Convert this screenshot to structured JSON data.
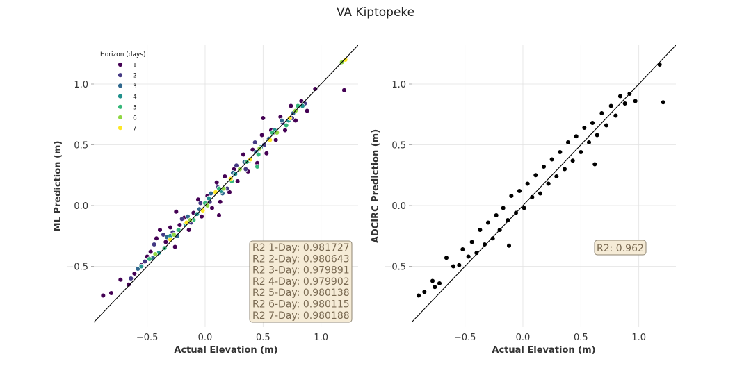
{
  "title": "VA Kiptopeke",
  "chart_data": [
    {
      "type": "scatter",
      "xlabel": "Actual Elevation (m)",
      "ylabel": "ML Prediction (m)",
      "xlim": [
        -0.96,
        1.32
      ],
      "ylim": [
        -1.0,
        1.32
      ],
      "xticks": [
        -0.5,
        0.0,
        0.5,
        1.0
      ],
      "yticks": [
        -0.5,
        0.0,
        0.5,
        1.0
      ],
      "xtick_labels": [
        "−0.5",
        "0.0",
        "0.5",
        "1.0"
      ],
      "ytick_labels": [
        "−0.5",
        "0.0",
        "0.5",
        "1.0"
      ],
      "grid": true,
      "reference_line": "y = x",
      "legend": {
        "title": "Horizon (days)",
        "placement": "top-left",
        "entries": [
          {
            "label": "1",
            "color": "#440154"
          },
          {
            "label": "2",
            "color": "#443983"
          },
          {
            "label": "3",
            "color": "#31688e"
          },
          {
            "label": "4",
            "color": "#21918c"
          },
          {
            "label": "5",
            "color": "#35b779"
          },
          {
            "label": "6",
            "color": "#90d743"
          },
          {
            "label": "7",
            "color": "#fde725"
          }
        ]
      },
      "series": [
        {
          "name": "1",
          "color": "#440154",
          "points": [
            [
              -0.88,
              -0.74
            ],
            [
              -0.81,
              -0.72
            ],
            [
              -0.73,
              -0.61
            ],
            [
              -0.66,
              -0.65
            ],
            [
              -0.61,
              -0.56
            ],
            [
              -0.55,
              -0.49
            ],
            [
              -0.5,
              -0.42
            ],
            [
              -0.47,
              -0.38
            ],
            [
              -0.42,
              -0.27
            ],
            [
              -0.39,
              -0.2
            ],
            [
              -0.34,
              -0.3
            ],
            [
              -0.3,
              -0.18
            ],
            [
              -0.26,
              -0.34
            ],
            [
              -0.22,
              -0.16
            ],
            [
              -0.18,
              -0.1
            ],
            [
              -0.14,
              -0.2
            ],
            [
              -0.1,
              -0.06
            ],
            [
              -0.06,
              0.05
            ],
            [
              -0.03,
              -0.09
            ],
            [
              0.02,
              0.08
            ],
            [
              0.06,
              -0.02
            ],
            [
              0.1,
              0.19
            ],
            [
              0.13,
              0.03
            ],
            [
              0.17,
              0.24
            ],
            [
              0.21,
              0.11
            ],
            [
              0.25,
              0.3
            ],
            [
              0.28,
              0.2
            ],
            [
              0.33,
              0.42
            ],
            [
              0.37,
              0.28
            ],
            [
              0.41,
              0.46
            ],
            [
              0.45,
              0.35
            ],
            [
              0.49,
              0.58
            ],
            [
              0.53,
              0.43
            ],
            [
              0.57,
              0.62
            ],
            [
              0.61,
              0.54
            ],
            [
              0.65,
              0.73
            ],
            [
              0.69,
              0.62
            ],
            [
              0.74,
              0.82
            ],
            [
              0.78,
              0.7
            ],
            [
              0.83,
              0.86
            ],
            [
              0.88,
              0.78
            ],
            [
              0.95,
              0.96
            ],
            [
              1.2,
              0.95
            ],
            [
              0.12,
              -0.08
            ],
            [
              -0.25,
              -0.05
            ],
            [
              0.5,
              0.72
            ]
          ]
        },
        {
          "name": "2",
          "color": "#443983",
          "points": [
            [
              -0.64,
              -0.6
            ],
            [
              -0.52,
              -0.46
            ],
            [
              -0.44,
              -0.32
            ],
            [
              -0.36,
              -0.24
            ],
            [
              -0.28,
              -0.22
            ],
            [
              -0.2,
              -0.11
            ],
            [
              -0.12,
              -0.14
            ],
            [
              -0.04,
              0.02
            ],
            [
              0.04,
              0.03
            ],
            [
              0.11,
              0.15
            ],
            [
              0.19,
              0.14
            ],
            [
              0.27,
              0.33
            ],
            [
              0.35,
              0.3
            ],
            [
              0.43,
              0.52
            ],
            [
              0.51,
              0.5
            ],
            [
              0.59,
              0.6
            ],
            [
              0.67,
              0.68
            ],
            [
              0.75,
              0.72
            ],
            [
              0.86,
              0.84
            ]
          ]
        },
        {
          "name": "3",
          "color": "#31688e",
          "points": [
            [
              -0.58,
              -0.52
            ],
            [
              -0.45,
              -0.43
            ],
            [
              -0.33,
              -0.26
            ],
            [
              -0.24,
              -0.25
            ],
            [
              -0.15,
              -0.09
            ],
            [
              -0.05,
              -0.03
            ],
            [
              0.05,
              0.1
            ],
            [
              0.15,
              0.1
            ],
            [
              0.24,
              0.27
            ],
            [
              0.34,
              0.36
            ],
            [
              0.44,
              0.44
            ],
            [
              0.55,
              0.55
            ],
            [
              0.66,
              0.7
            ],
            [
              0.76,
              0.76
            ]
          ]
        },
        {
          "name": "4",
          "color": "#21918c",
          "points": [
            [
              -0.55,
              -0.5
            ],
            [
              -0.4,
              -0.39
            ],
            [
              -0.3,
              -0.25
            ],
            [
              -0.17,
              -0.15
            ],
            [
              -0.07,
              -0.07
            ],
            [
              0.03,
              0.06
            ],
            [
              0.14,
              0.12
            ],
            [
              0.26,
              0.26
            ],
            [
              0.38,
              0.37
            ],
            [
              0.48,
              0.48
            ],
            [
              0.6,
              0.62
            ],
            [
              0.72,
              0.7
            ],
            [
              0.84,
              0.82
            ]
          ]
        },
        {
          "name": "5",
          "color": "#35b779",
          "points": [
            [
              -0.48,
              -0.44
            ],
            [
              -0.35,
              -0.35
            ],
            [
              -0.23,
              -0.2
            ],
            [
              -0.1,
              -0.12
            ],
            [
              0.0,
              0.02
            ],
            [
              0.12,
              0.14
            ],
            [
              0.23,
              0.2
            ],
            [
              0.36,
              0.36
            ],
            [
              0.46,
              0.42
            ],
            [
              0.58,
              0.6
            ],
            [
              0.7,
              0.66
            ],
            [
              0.8,
              0.82
            ],
            [
              0.45,
              0.32
            ]
          ]
        },
        {
          "name": "6",
          "color": "#90d743",
          "points": [
            [
              -0.43,
              -0.4
            ],
            [
              -0.27,
              -0.24
            ],
            [
              -0.13,
              -0.12
            ],
            [
              0.02,
              0.0
            ],
            [
              0.16,
              0.14
            ],
            [
              0.3,
              0.3
            ],
            [
              0.47,
              0.47
            ],
            [
              0.62,
              0.6
            ],
            [
              0.78,
              0.78
            ],
            [
              1.18,
              1.18
            ]
          ]
        },
        {
          "name": "7",
          "color": "#fde725",
          "points": [
            [
              -0.3,
              -0.28
            ],
            [
              -0.16,
              -0.14
            ],
            [
              -0.02,
              -0.04
            ],
            [
              0.09,
              0.11
            ],
            [
              0.22,
              0.22
            ],
            [
              0.39,
              0.38
            ],
            [
              0.56,
              0.54
            ],
            [
              0.73,
              0.72
            ],
            [
              1.21,
              1.2
            ]
          ]
        }
      ],
      "annotation": [
        "R2 1-Day: 0.981727",
        "R2 2-Day: 0.980643",
        "R2 3-Day: 0.979891",
        "R2 4-Day: 0.979902",
        "R2 5-Day: 0.980138",
        "R2 6-Day: 0.980115",
        "R2 7-Day: 0.980188"
      ]
    },
    {
      "type": "scatter",
      "xlabel": "Actual Elevation (m)",
      "ylabel": "ADCIRC Prediction (m)",
      "xlim": [
        -0.96,
        1.32
      ],
      "ylim": [
        -1.0,
        1.32
      ],
      "xticks": [
        -0.5,
        0.0,
        0.5,
        1.0
      ],
      "yticks": [
        -0.5,
        0.0,
        0.5,
        1.0
      ],
      "xtick_labels": [
        "−0.5",
        "0.0",
        "0.5",
        "1.0"
      ],
      "ytick_labels": [
        "−0.5",
        "0.0",
        "0.5",
        "1.0"
      ],
      "grid": true,
      "reference_line": "y = x",
      "series": [
        {
          "color": "#000000",
          "points": [
            [
              -0.9,
              -0.74
            ],
            [
              -0.85,
              -0.71
            ],
            [
              -0.78,
              -0.62
            ],
            [
              -0.76,
              -0.67
            ],
            [
              -0.72,
              -0.64
            ],
            [
              -0.66,
              -0.43
            ],
            [
              -0.6,
              -0.5
            ],
            [
              -0.55,
              -0.49
            ],
            [
              -0.52,
              -0.36
            ],
            [
              -0.47,
              -0.42
            ],
            [
              -0.44,
              -0.3
            ],
            [
              -0.4,
              -0.39
            ],
            [
              -0.37,
              -0.2
            ],
            [
              -0.33,
              -0.32
            ],
            [
              -0.3,
              -0.14
            ],
            [
              -0.26,
              -0.27
            ],
            [
              -0.23,
              -0.08
            ],
            [
              -0.2,
              -0.2
            ],
            [
              -0.17,
              -0.02
            ],
            [
              -0.13,
              -0.12
            ],
            [
              -0.1,
              0.08
            ],
            [
              -0.06,
              -0.06
            ],
            [
              -0.03,
              0.12
            ],
            [
              0.01,
              -0.02
            ],
            [
              0.04,
              0.18
            ],
            [
              0.08,
              0.07
            ],
            [
              0.11,
              0.25
            ],
            [
              0.15,
              0.1
            ],
            [
              0.18,
              0.32
            ],
            [
              0.22,
              0.18
            ],
            [
              0.25,
              0.38
            ],
            [
              0.29,
              0.24
            ],
            [
              0.32,
              0.44
            ],
            [
              0.36,
              0.3
            ],
            [
              0.39,
              0.52
            ],
            [
              0.43,
              0.37
            ],
            [
              0.46,
              0.57
            ],
            [
              0.5,
              0.44
            ],
            [
              0.53,
              0.64
            ],
            [
              0.57,
              0.52
            ],
            [
              0.6,
              0.68
            ],
            [
              0.64,
              0.58
            ],
            [
              0.68,
              0.76
            ],
            [
              0.72,
              0.66
            ],
            [
              0.76,
              0.82
            ],
            [
              0.8,
              0.74
            ],
            [
              0.84,
              0.9
            ],
            [
              0.88,
              0.84
            ],
            [
              0.92,
              0.92
            ],
            [
              0.97,
              0.86
            ],
            [
              1.18,
              1.16
            ],
            [
              1.21,
              0.85
            ],
            [
              0.62,
              0.34
            ],
            [
              -0.12,
              -0.33
            ]
          ]
        }
      ],
      "annotation": [
        "R2: 0.962"
      ]
    }
  ]
}
